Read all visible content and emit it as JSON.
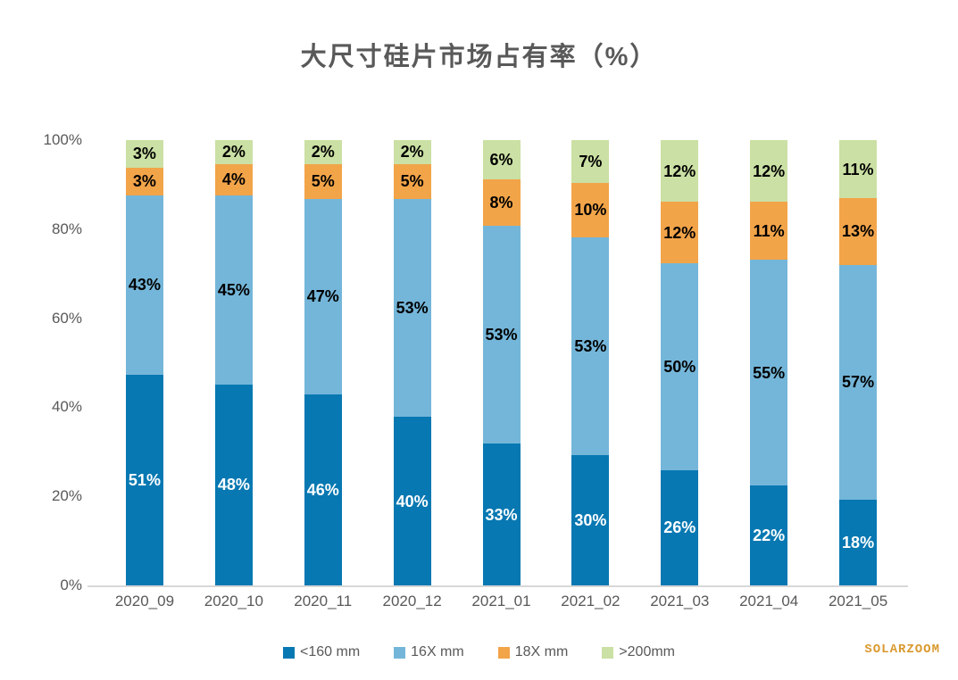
{
  "watermark": "SOLARZOOM",
  "chart_data": {
    "type": "bar",
    "stacked": true,
    "percent_stacked": true,
    "title": "大尺寸硅片市场占有率（%）",
    "categories": [
      "2020_09",
      "2020_10",
      "2020_11",
      "2020_12",
      "2021_01",
      "2021_02",
      "2021_03",
      "2021_04",
      "2021_05"
    ],
    "series": [
      {
        "name": "<160 mm",
        "color": "#0778b2",
        "label_color": "#ffffff",
        "values": [
          51,
          48,
          46,
          40,
          33,
          30,
          26,
          22,
          18
        ]
      },
      {
        "name": "16X mm",
        "color": "#74b6d9",
        "label_color": "#000000",
        "values": [
          43,
          45,
          47,
          53,
          53,
          53,
          50,
          55,
          57
        ]
      },
      {
        "name": "18X mm",
        "color": "#f2a449",
        "label_color": "#000000",
        "values": [
          3,
          4,
          5,
          5,
          8,
          10,
          12,
          11,
          13
        ]
      },
      {
        "name": ">200mm",
        "color": "#cbe0a4",
        "label_color": "#000000",
        "values": [
          3,
          2,
          2,
          2,
          6,
          7,
          12,
          12,
          11
        ]
      }
    ],
    "xlabel": "",
    "ylabel": "",
    "ylim": [
      0,
      100
    ],
    "yticks": [
      "0%",
      "20%",
      "40%",
      "60%",
      "80%",
      "100%"
    ],
    "value_suffix": "%",
    "grid": false,
    "legend_position": "bottom",
    "axis_text_color": "#595959",
    "baseline_color": "#d8d8d8"
  }
}
